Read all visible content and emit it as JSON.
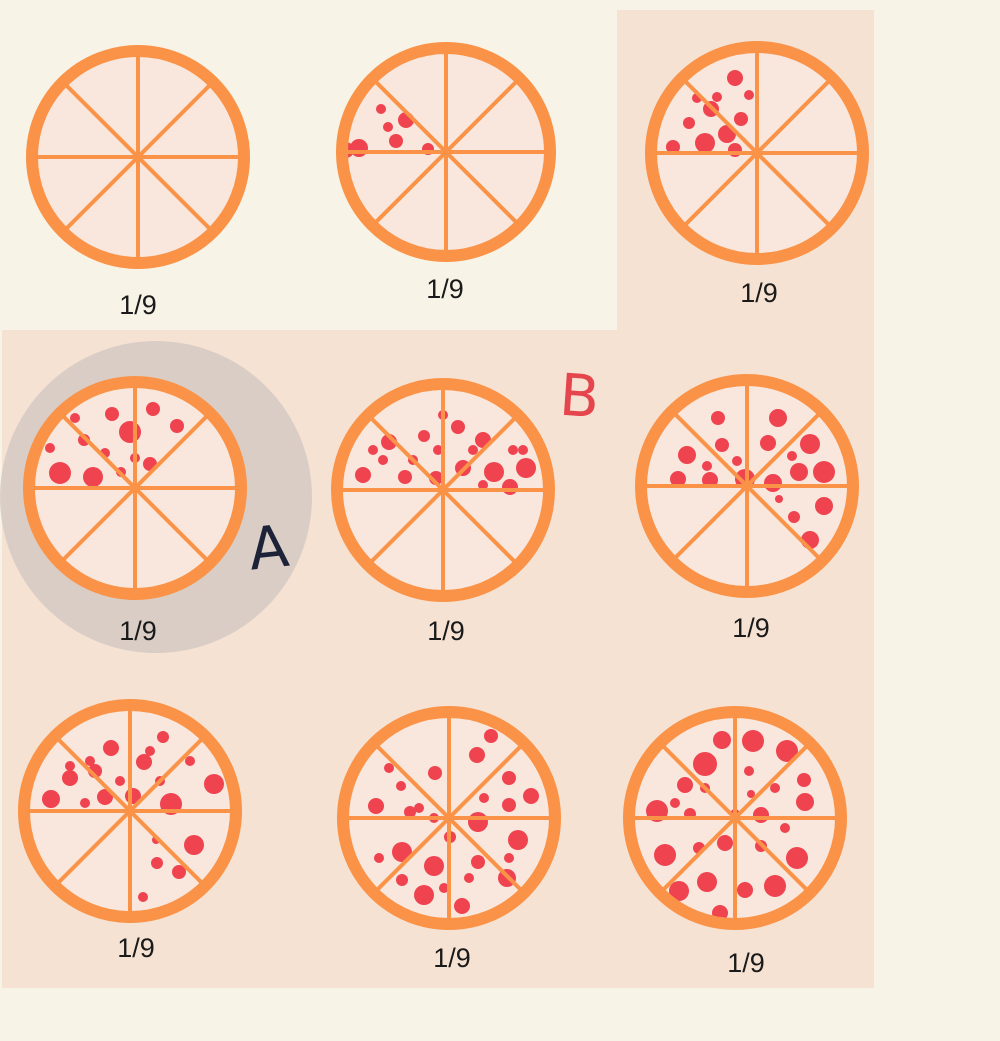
{
  "colors": {
    "background": "#f8f3e7",
    "region_b": "#f6e2d3",
    "highlight_a": "#d3c9c3",
    "crust": "#fa9347",
    "slice_fill": "#f9e7dd",
    "pepperoni": "#ef4350",
    "label_a": "#1c2238",
    "label_b": "#e5454d"
  },
  "markers": {
    "a": "A",
    "b": "B"
  },
  "pizzas": [
    {
      "label": "1/9",
      "pepperoni_count": 0
    },
    {
      "label": "1/9",
      "pepperoni_count": 7
    },
    {
      "label": "1/9",
      "pepperoni_count": 11
    },
    {
      "label": "1/9",
      "pepperoni_count": 13
    },
    {
      "label": "1/9",
      "pepperoni_count": 14
    },
    {
      "label": "1/9",
      "pepperoni_count": 20
    },
    {
      "label": "1/9",
      "pepperoni_count": 19
    },
    {
      "label": "1/9",
      "pepperoni_count": 22
    },
    {
      "label": "1/9",
      "pepperoni_count": 27
    }
  ]
}
